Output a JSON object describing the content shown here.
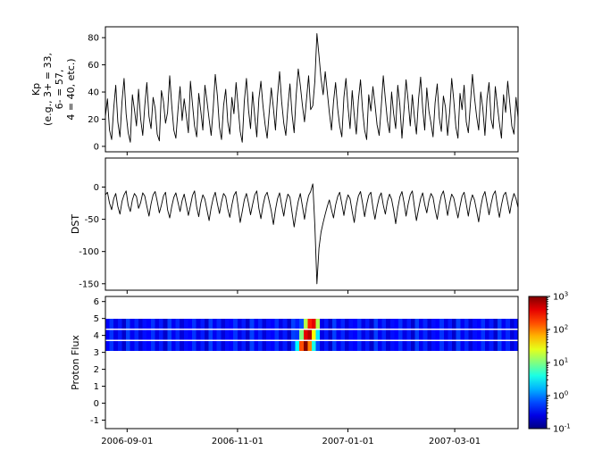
{
  "figure": {
    "background": "#ffffff",
    "frame_color": "#000000",
    "line_color": "#000000"
  },
  "x_axis": {
    "range_days": [
      0,
      228
    ],
    "ticks": [
      {
        "day": 12,
        "label": "2006-09-01"
      },
      {
        "day": 73,
        "label": "2006-11-01"
      },
      {
        "day": 134,
        "label": "2007-01-01"
      },
      {
        "day": 193,
        "label": "2007-03-01"
      }
    ]
  },
  "colorbar": {
    "scale": "log10",
    "range_log10": [
      -1,
      3
    ],
    "colormap": "jet",
    "exponents": [
      3,
      2,
      1,
      0,
      -1
    ],
    "base": "10"
  },
  "chart_data": [
    {
      "type": "line",
      "name": "kp",
      "ylabel_lines": [
        "Kp",
        "(e.g., 3+ = 33,",
        "6- = 57,",
        "4 = 40, etc.)"
      ],
      "ylim": [
        -4,
        88
      ],
      "yticks": [
        0,
        20,
        40,
        60,
        80
      ],
      "grid": false,
      "values": [
        22,
        35,
        12,
        5,
        28,
        45,
        18,
        7,
        33,
        50,
        24,
        10,
        3,
        38,
        27,
        15,
        42,
        20,
        8,
        30,
        47,
        22,
        13,
        36,
        28,
        9,
        4,
        41,
        33,
        17,
        25,
        52,
        30,
        12,
        6,
        27,
        44,
        19,
        35,
        23,
        10,
        48,
        31,
        15,
        7,
        39,
        26,
        12,
        45,
        33,
        20,
        8,
        28,
        53,
        37,
        14,
        5,
        30,
        42,
        18,
        9,
        36,
        24,
        47,
        29,
        11,
        3,
        33,
        50,
        27,
        13,
        40,
        22,
        7,
        35,
        48,
        30,
        16,
        6,
        25,
        43,
        28,
        12,
        37,
        55,
        33,
        17,
        8,
        29,
        46,
        24,
        10,
        38,
        57,
        45,
        30,
        18,
        35,
        52,
        27,
        30,
        48,
        83,
        67,
        50,
        38,
        55,
        40,
        25,
        12,
        33,
        47,
        28,
        15,
        7,
        36,
        50,
        29,
        13,
        41,
        23,
        9,
        34,
        49,
        27,
        12,
        5,
        38,
        26,
        44,
        31,
        16,
        8,
        29,
        52,
        35,
        19,
        10,
        40,
        24,
        13,
        45,
        30,
        6,
        27,
        49,
        33,
        15,
        38,
        22,
        9,
        35,
        51,
        28,
        12,
        43,
        26,
        17,
        7,
        32,
        46,
        21,
        11,
        37,
        29,
        8,
        25,
        50,
        34,
        14,
        6,
        39,
        27,
        45,
        18,
        10,
        31,
        53,
        36,
        22,
        12,
        40,
        28,
        8,
        35,
        47,
        20,
        13,
        44,
        30,
        17,
        6,
        38,
        25,
        48,
        32,
        15,
        9,
        36,
        21
      ]
    },
    {
      "type": "line",
      "name": "dst",
      "ylabel": "DST",
      "ylim": [
        -160,
        45
      ],
      "yticks": [
        0,
        -50,
        -100,
        -150
      ],
      "grid": false,
      "values": [
        -12,
        -8,
        -25,
        -35,
        -18,
        -10,
        -30,
        -42,
        -22,
        -12,
        -6,
        -28,
        -38,
        -20,
        -10,
        -15,
        -33,
        -24,
        -9,
        -14,
        -30,
        -45,
        -26,
        -12,
        -7,
        -22,
        -40,
        -28,
        -14,
        -8,
        -35,
        -48,
        -30,
        -16,
        -9,
        -24,
        -38,
        -21,
        -11,
        -27,
        -44,
        -29,
        -13,
        -6,
        -31,
        -46,
        -25,
        -12,
        -19,
        -36,
        -52,
        -32,
        -17,
        -8,
        -26,
        -41,
        -23,
        -10,
        -15,
        -34,
        -47,
        -28,
        -13,
        -7,
        -30,
        -55,
        -38,
        -20,
        -10,
        -25,
        -43,
        -27,
        -12,
        -6,
        -33,
        -49,
        -29,
        -14,
        -8,
        -22,
        -37,
        -58,
        -35,
        -18,
        -9,
        -28,
        -45,
        -24,
        -11,
        -16,
        -39,
        -62,
        -40,
        -22,
        -10,
        -30,
        -50,
        -28,
        -13,
        -7,
        5,
        -60,
        -150,
        -95,
        -70,
        -55,
        -42,
        -30,
        -20,
        -35,
        -48,
        -28,
        -15,
        -8,
        -26,
        -44,
        -24,
        -12,
        -18,
        -38,
        -55,
        -30,
        -14,
        -7,
        -25,
        -46,
        -27,
        -13,
        -8,
        -32,
        -50,
        -31,
        -16,
        -9,
        -28,
        -42,
        -22,
        -11,
        -19,
        -36,
        -57,
        -33,
        -15,
        -7,
        -24,
        -45,
        -26,
        -12,
        -6,
        -30,
        -52,
        -34,
        -18,
        -9,
        -27,
        -40,
        -21,
        -10,
        -16,
        -35,
        -50,
        -28,
        -13,
        -6,
        -23,
        -44,
        -25,
        -11,
        -17,
        -33,
        -48,
        -30,
        -14,
        -8,
        -26,
        -45,
        -24,
        -12,
        -20,
        -37,
        -54,
        -31,
        -15,
        -7,
        -25,
        -43,
        -26,
        -12,
        -6,
        -29,
        -47,
        -28,
        -13,
        -8,
        -24,
        -41,
        -22,
        -10,
        -18,
        -32
      ]
    },
    {
      "type": "heatmap",
      "name": "proton_flux",
      "ylabel": "Proton Flux",
      "ylim": [
        -1.5,
        6.3
      ],
      "yticks": [
        -1,
        0,
        1,
        2,
        3,
        4,
        5,
        6
      ],
      "row_bands": [
        [
          3.08,
          3.66
        ],
        [
          3.74,
          4.32
        ],
        [
          4.4,
          4.98
        ]
      ],
      "columns": 100,
      "color_range_log10": [
        -1,
        3
      ],
      "background_pattern_log10": [
        -0.5,
        -0.3,
        -0.6,
        -0.4,
        -0.7,
        -0.25,
        -0.55,
        -0.35,
        -0.65,
        -0.45
      ],
      "event": {
        "start_col": 46,
        "values_by_row_log10": [
          [
            0.5,
            2.2,
            3.0,
            2.0,
            0.6,
            -0.2
          ],
          [
            -0.3,
            1.0,
            2.6,
            2.8,
            1.5,
            0.4
          ],
          [
            -0.4,
            -0.2,
            1.2,
            2.4,
            2.6,
            1.2
          ]
        ]
      }
    }
  ]
}
